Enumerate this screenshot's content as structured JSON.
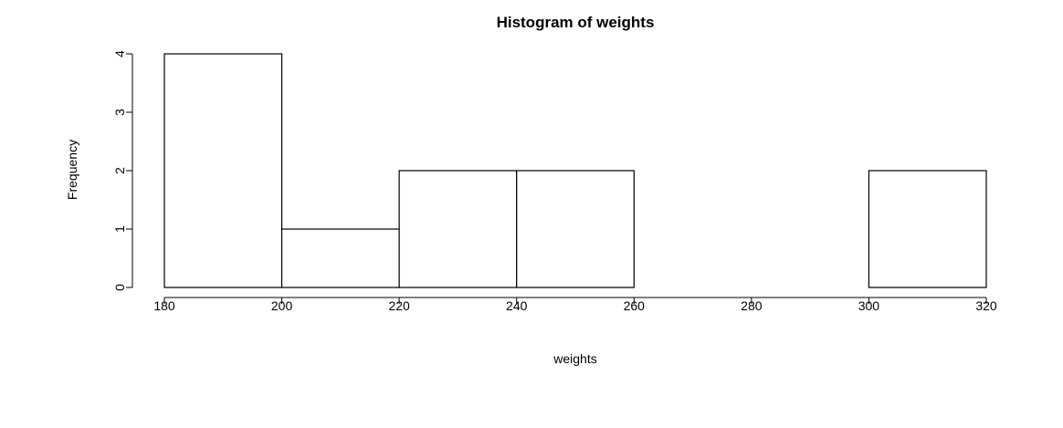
{
  "chart_data": {
    "type": "bar",
    "title": "Histogram of weights",
    "xlabel": "weights",
    "ylabel": "Frequency",
    "bins": [
      {
        "start": 180,
        "end": 200,
        "count": 4
      },
      {
        "start": 200,
        "end": 220,
        "count": 1
      },
      {
        "start": 220,
        "end": 240,
        "count": 2
      },
      {
        "start": 240,
        "end": 260,
        "count": 2
      },
      {
        "start": 260,
        "end": 280,
        "count": 0
      },
      {
        "start": 280,
        "end": 300,
        "count": 0
      },
      {
        "start": 300,
        "end": 320,
        "count": 2
      }
    ],
    "x_ticks": [
      "180",
      "200",
      "220",
      "240",
      "260",
      "280",
      "300",
      "320"
    ],
    "y_ticks": [
      "0",
      "1",
      "2",
      "3",
      "4"
    ],
    "xlim": [
      180,
      320
    ],
    "ylim": [
      0,
      4
    ],
    "grid": false
  }
}
